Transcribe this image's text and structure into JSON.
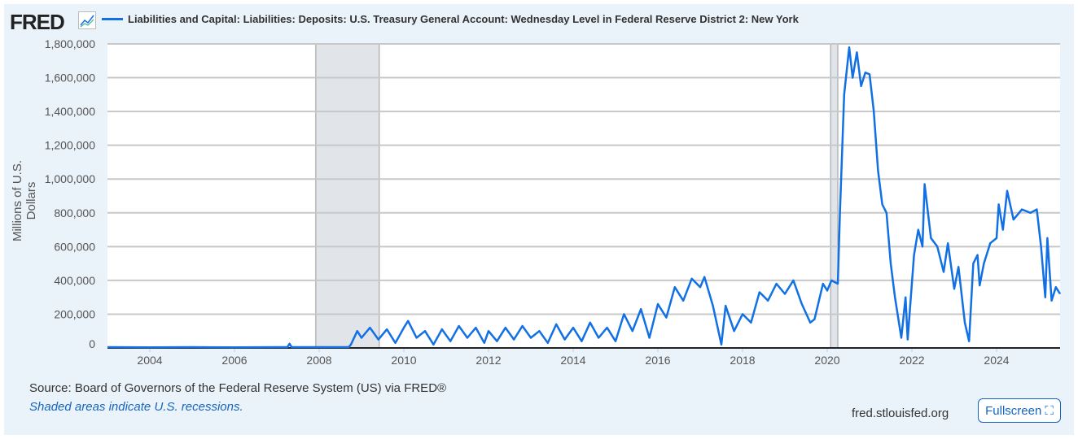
{
  "header": {
    "logo": "FRED",
    "series_title": "Liabilities and Capital: Liabilities: Deposits: U.S. Treasury General Account: Wednesday Level in Federal Reserve District 2: New York"
  },
  "footer": {
    "source": "Source: Board of Governors of the Federal Reserve System (US) via FRED®",
    "recession_note": "Shaded areas indicate U.S. recessions.",
    "url": "fred.stlouisfed.org",
    "fullscreen": "Fullscreen"
  },
  "colors": {
    "line": "#1170e4",
    "recession": "#e1e5ea",
    "background": "#eaf2fa"
  },
  "chart_data": {
    "type": "line",
    "title": "Liabilities and Capital: Liabilities: Deposits: U.S. Treasury General Account: Wednesday Level in Federal Reserve District 2: New York",
    "ylabel": "Millions of U.S. Dollars",
    "xlabel": "",
    "xlim": [
      2003.0,
      2025.5
    ],
    "ylim": [
      0,
      1800000
    ],
    "yticks": [
      0,
      200000,
      400000,
      600000,
      800000,
      1000000,
      1200000,
      1400000,
      1600000,
      1800000
    ],
    "ytick_labels": [
      "0",
      "200,000",
      "400,000",
      "600,000",
      "800,000",
      "1,000,000",
      "1,200,000",
      "1,400,000",
      "1,600,000",
      "1,800,000"
    ],
    "xticks": [
      2004,
      2006,
      2008,
      2010,
      2012,
      2014,
      2016,
      2018,
      2020,
      2022,
      2024
    ],
    "xtick_labels": [
      "2004",
      "2006",
      "2008",
      "2010",
      "2012",
      "2014",
      "2016",
      "2018",
      "2020",
      "2022",
      "2024"
    ],
    "recessions": [
      [
        2007.92,
        2009.42
      ],
      [
        2020.08,
        2020.25
      ]
    ],
    "grid": true,
    "series": [
      {
        "name": "Liabilities and Capital: Liabilities: Deposits: U.S. Treasury General Account: Wednesday Level in Federal Reserve District 2: New York",
        "x": [
          2003.0,
          2004,
          2005,
          2006,
          2007,
          2007.25,
          2007.3,
          2007.35,
          2008,
          2008.7,
          2008.75,
          2008.9,
          2009,
          2009.2,
          2009.4,
          2009.6,
          2009.8,
          2010,
          2010.1,
          2010.3,
          2010.5,
          2010.7,
          2010.9,
          2011.1,
          2011.3,
          2011.5,
          2011.7,
          2011.9,
          2012,
          2012.2,
          2012.4,
          2012.6,
          2012.8,
          2013,
          2013.2,
          2013.4,
          2013.6,
          2013.8,
          2014,
          2014.2,
          2014.4,
          2014.6,
          2014.8,
          2015,
          2015.2,
          2015.4,
          2015.6,
          2015.8,
          2016,
          2016.2,
          2016.4,
          2016.6,
          2016.8,
          2017,
          2017.1,
          2017.3,
          2017.5,
          2017.6,
          2017.8,
          2018,
          2018.2,
          2018.4,
          2018.6,
          2018.8,
          2019,
          2019.2,
          2019.4,
          2019.6,
          2019.7,
          2019.9,
          2020,
          2020.1,
          2020.25,
          2020.3,
          2020.4,
          2020.52,
          2020.6,
          2020.7,
          2020.8,
          2020.9,
          2021.0,
          2021.1,
          2021.2,
          2021.3,
          2021.4,
          2021.5,
          2021.6,
          2021.75,
          2021.85,
          2021.9,
          2022.05,
          2022.15,
          2022.25,
          2022.3,
          2022.45,
          2022.6,
          2022.75,
          2022.85,
          2023.0,
          2023.1,
          2023.25,
          2023.35,
          2023.45,
          2023.55,
          2023.6,
          2023.7,
          2023.85,
          2024.0,
          2024.05,
          2024.15,
          2024.25,
          2024.4,
          2024.6,
          2024.8,
          2024.95,
          2025.05,
          2025.15,
          2025.2,
          2025.3,
          2025.4,
          2025.5
        ],
        "y": [
          5000,
          4000,
          5000,
          4000,
          5000,
          5000,
          25000,
          5000,
          5000,
          5000,
          20000,
          100000,
          60000,
          120000,
          50000,
          110000,
          30000,
          120000,
          160000,
          60000,
          100000,
          20000,
          110000,
          40000,
          130000,
          60000,
          120000,
          30000,
          100000,
          40000,
          120000,
          50000,
          130000,
          60000,
          100000,
          30000,
          140000,
          50000,
          120000,
          40000,
          150000,
          60000,
          120000,
          40000,
          200000,
          100000,
          230000,
          60000,
          260000,
          180000,
          360000,
          280000,
          410000,
          360000,
          420000,
          250000,
          20000,
          250000,
          100000,
          200000,
          150000,
          330000,
          280000,
          380000,
          320000,
          400000,
          260000,
          150000,
          170000,
          380000,
          340000,
          400000,
          380000,
          800000,
          1500000,
          1780000,
          1600000,
          1750000,
          1550000,
          1630000,
          1620000,
          1400000,
          1050000,
          850000,
          800000,
          500000,
          300000,
          60000,
          300000,
          50000,
          550000,
          700000,
          600000,
          970000,
          650000,
          600000,
          450000,
          620000,
          350000,
          480000,
          150000,
          40000,
          500000,
          550000,
          370000,
          500000,
          620000,
          650000,
          850000,
          700000,
          930000,
          760000,
          820000,
          800000,
          820000,
          600000,
          300000,
          650000,
          280000,
          360000,
          320000
        ]
      }
    ]
  }
}
